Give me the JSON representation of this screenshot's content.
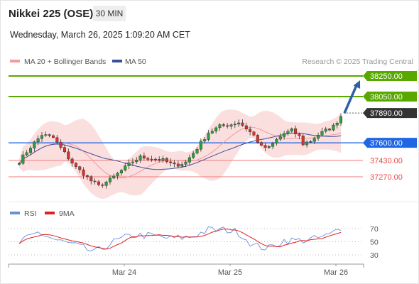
{
  "header": {
    "instrument": "Nikkei 225 (OSE)",
    "timeframe": "30 MIN",
    "datetime": "Wednesday, March 26, 2025 1:09:20 AM CET"
  },
  "legend": {
    "ma20": "MA 20 + Bollinger Bands",
    "ma50": "MA 50",
    "rsi": "RSI",
    "rsi_ma": "9MA"
  },
  "credit": "Research © 2025 Trading Central",
  "colors": {
    "green": "#58a800",
    "blue": "#1f66e5",
    "red": "#e84a4a",
    "dark": "#333333",
    "bb_fill": "#fbdcdc",
    "ma50": "#3a4f9a",
    "arrow": "#2e5fa8",
    "rsi": "#6b8fd6",
    "rsi_ma": "#e02020"
  },
  "chart_data": {
    "type": "candlestick",
    "price_axis": {
      "min": 37200,
      "max": 38350
    },
    "current_price": 37890,
    "target_projection": 38250,
    "levels": [
      {
        "value": 38250,
        "label": "38250.00",
        "style": "resistance"
      },
      {
        "value": 38050,
        "label": "38050.00",
        "style": "resistance"
      },
      {
        "value": 37890,
        "label": "37890.00",
        "style": "last"
      },
      {
        "value": 37600,
        "label": "37600.00",
        "style": "pivot"
      },
      {
        "value": 37430,
        "label": "37430.00",
        "style": "support"
      },
      {
        "value": 37270,
        "label": "37270.00",
        "style": "support"
      }
    ],
    "x_ticks": [
      "Mar 24",
      "Mar 25",
      "Mar 26"
    ],
    "price_path": [
      [
        0,
        37420
      ],
      [
        3,
        37560
      ],
      [
        6,
        37680
      ],
      [
        9,
        37650
      ],
      [
        12,
        37500
      ],
      [
        15,
        37360
      ],
      [
        17,
        37300
      ],
      [
        19,
        37230
      ],
      [
        21,
        37180
      ],
      [
        24,
        37240
      ],
      [
        27,
        37330
      ],
      [
        30,
        37420
      ],
      [
        32,
        37460
      ],
      [
        35,
        37450
      ],
      [
        38,
        37430
      ],
      [
        41,
        37380
      ],
      [
        44,
        37410
      ],
      [
        47,
        37550
      ],
      [
        50,
        37700
      ],
      [
        53,
        37760
      ],
      [
        56,
        37780
      ],
      [
        58,
        37800
      ],
      [
        60,
        37740
      ],
      [
        62,
        37670
      ],
      [
        64,
        37560
      ],
      [
        66,
        37550
      ],
      [
        68,
        37630
      ],
      [
        70,
        37690
      ],
      [
        72,
        37720
      ],
      [
        74,
        37660
      ],
      [
        75,
        37590
      ],
      [
        77,
        37620
      ],
      [
        79,
        37680
      ],
      [
        81,
        37720
      ],
      [
        83,
        37760
      ],
      [
        85,
        37860
      ]
    ],
    "rsi": {
      "levels": [
        70,
        50,
        30
      ],
      "path": [
        [
          0,
          48
        ],
        [
          5,
          64
        ],
        [
          10,
          52
        ],
        [
          15,
          44
        ],
        [
          20,
          34
        ],
        [
          25,
          50
        ],
        [
          30,
          60
        ],
        [
          35,
          59
        ],
        [
          40,
          55
        ],
        [
          45,
          57
        ],
        [
          50,
          68
        ],
        [
          55,
          68
        ],
        [
          58,
          64
        ],
        [
          62,
          44
        ],
        [
          66,
          40
        ],
        [
          70,
          52
        ],
        [
          74,
          52
        ],
        [
          78,
          54
        ],
        [
          82,
          60
        ],
        [
          85,
          72
        ]
      ]
    }
  }
}
